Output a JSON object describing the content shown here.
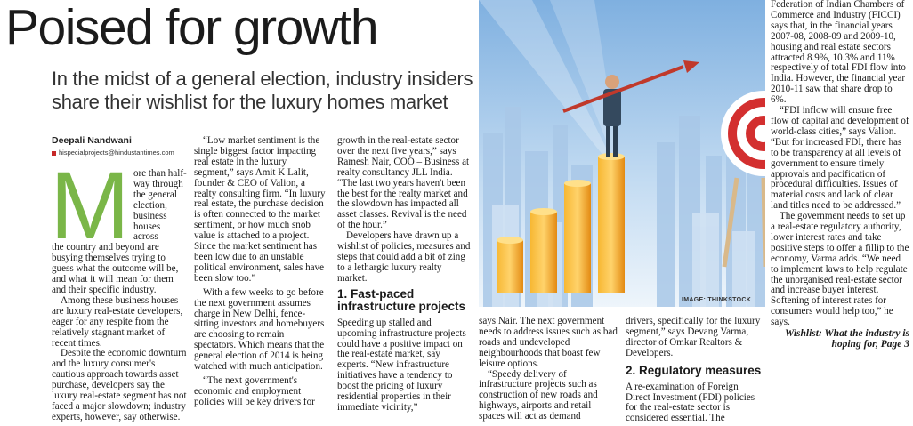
{
  "headline": "Poised for growth",
  "deck": "In the midst of a general election, industry insiders share their wishlist for the luxury homes market",
  "byline": "Deepali Nandwani",
  "email": "hispecialprojects@hindustantimes.com",
  "image_credit": "IMAGE: THINKSTOCK",
  "colors": {
    "accent_green": "#7ab648",
    "bar_orange": "#f5a623",
    "sky": "#9ec3e6"
  },
  "col1": {
    "dropcap": "M",
    "p1_lead": "ore than half-way through the general election, business houses across",
    "p1_rest": "the country and beyond are busying themselves trying to guess what the outcome will be, and what it will mean for them and their specific industry.",
    "p2": "Among these business houses are luxury real-estate developers, eager for any respite from the relatively stagnant market of recent times.",
    "p3": "Despite the economic downturn and the luxury consumer's cautious approach towards asset purchase, developers say the luxury real-estate segment has not faced a major slowdown; industry experts, however, say otherwise."
  },
  "col2": {
    "p1": "“Low market sentiment is the single biggest factor impacting real estate in the luxury segment,” says Amit K Lalit, founder & CEO of Valion, a realty consulting firm. “In luxury real estate, the purchase decision is often connected to the market sentiment, or how much snob value is attached to a project. Since the market sentiment has been low due to an unstable political environment, sales have been slow too.”",
    "p2": "With a few weeks to go before the next government assumes charge in New Delhi, fence-sitting investors and homebuyers are choosing to remain spectators. Which means that the general election of 2014 is being watched with much anticipation.",
    "p3": "“The next government's economic and employment policies will be key drivers for"
  },
  "col3": {
    "p1": "growth in the real-estate sector over the next five years,” says Ramesh Nair, COO – Business at realty consultancy JLL India. “The last two years haven't been the best for the realty market and the slowdown has impacted all asset classes. Revival is the need of the hour.”",
    "p2": "Developers have drawn up a wishlist of policies, measures and steps that could add a bit of zing to a lethargic luxury realty market.",
    "subhead": "1. Fast-paced infrastructure projects",
    "p3": "Speeding up stalled and upcoming infrastructure projects could have a positive impact on the real-estate market, say experts. “New infrastructure initiatives have a tendency to boost the pricing of luxury residential properties in their immediate vicinity,”"
  },
  "col4": {
    "p1": "says Nair. The next government needs to address issues such as bad roads and undeveloped neighbourhoods that boast few leisure options.",
    "p2": "“Speedy delivery of infrastructure projects such as construction of new roads and highways, airports and retail spaces will act as demand"
  },
  "col5": {
    "p1": "drivers, specifically for the luxury segment,” says Devang Varma, director of Omkar Realtors & Developers.",
    "subhead": "2. Regulatory measures",
    "p2": "A re-examination of Foreign Direct Investment (FDI) policies for the real-estate sector is considered essential. The"
  },
  "col6": {
    "p1": "Federation of Indian Chambers of Commerce and Industry (FICCI) says that, in the financial years 2007-08, 2008-09 and 2009-10, housing and real estate sectors attracted 8.9%, 10.3% and 11% respectively of total FDI flow into India. However, the financial year 2010-11 saw that share drop to 6%.",
    "p2": "“FDI inflow will ensure free flow of capital and development of world-class cities,” says Valion. “But for increased FDI, there has to be transparency at all levels of government to ensure timely approvals and pacification of procedural difficulties. Issues of material costs and lack of clear land titles need to be addressed.”",
    "p3": "The government needs to set up a real-estate regulatory authority, lower interest rates and take positive steps to offer a fillip to the economy, Varma adds. “We need to implement laws to help regulate the unorganised real-estate sector and increase buyer interest. Softening of interest rates for consumers would help too,” he says.",
    "pullquote": "Wishlist: What the industry is hoping for, Page 3"
  }
}
